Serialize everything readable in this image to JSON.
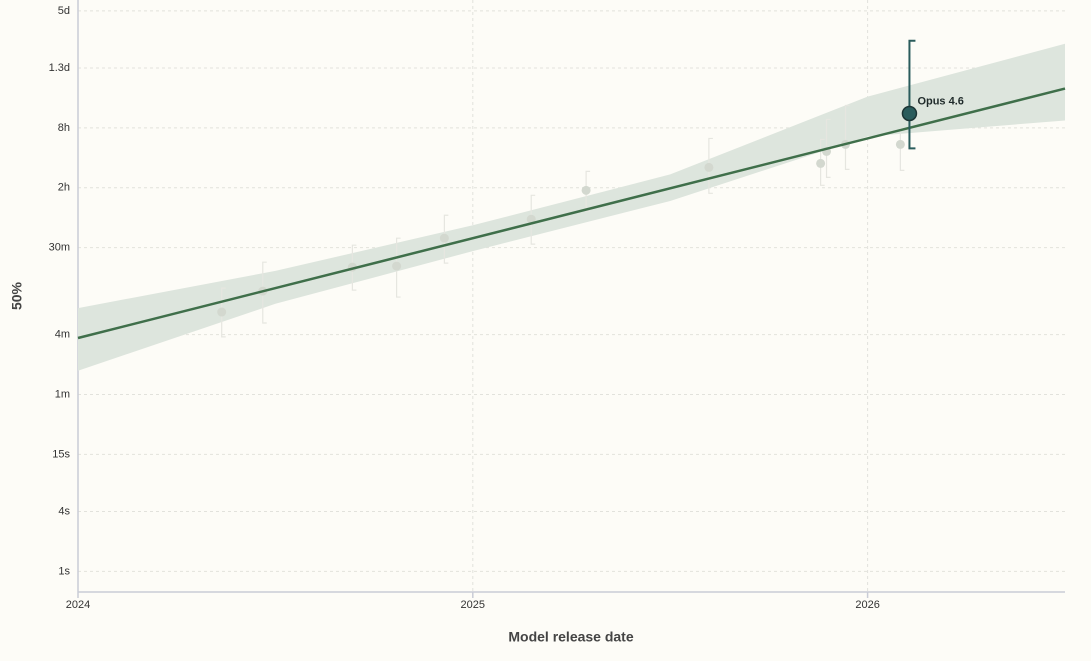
{
  "chart_data": {
    "type": "scatter",
    "y_label": "50%",
    "x_label": "Model release date",
    "xlim": [
      2024,
      2026.5
    ],
    "xticks": [
      2024,
      2025,
      2026
    ],
    "ylim": [
      0.62,
      556000
    ],
    "log_y": true,
    "grid": true,
    "yticks": [
      {
        "value": 1,
        "label": "1s"
      },
      {
        "value": 4,
        "label": "4s"
      },
      {
        "value": 15,
        "label": "15s"
      },
      {
        "value": 60,
        "label": "1m"
      },
      {
        "value": 240,
        "label": "4m"
      },
      {
        "value": 1800,
        "label": "30m"
      },
      {
        "value": 7200,
        "label": "2h"
      },
      {
        "value": 28800,
        "label": "8h"
      },
      {
        "value": 115200,
        "label": "1.3d"
      },
      {
        "value": 432000,
        "label": "5d"
      }
    ],
    "points": {
      "color": "#d3d8cf",
      "x": [
        2024.364,
        2024.468,
        2024.695,
        2024.807,
        2024.928,
        2025.148,
        2025.287,
        2025.598,
        2025.881,
        2025.896,
        2025.944,
        2026.083
      ],
      "values": [
        405,
        658,
        1146,
        1173,
        2239,
        3475,
        6780,
        11530,
        12650,
        16700,
        19630,
        19630
      ],
      "lower": [
        228,
        314,
        673,
        573,
        1256,
        1950,
        4180,
        6330,
        7620,
        9160,
        11010,
        10760
      ],
      "upper": [
        705,
        1285,
        1905,
        2239,
        3810,
        6040,
        10520,
        22550,
        22030,
        34990,
        48300,
        28400
      ]
    },
    "highlight": {
      "label": "Opus 4.6",
      "color": "#2a5c5c",
      "x": 2026.106,
      "value": 40180,
      "lower": 17900,
      "upper": 216700
    },
    "trend": {
      "color": "#3f6f4a",
      "x": [
        2024,
        2026.5
      ],
      "values": [
        222,
        71600
      ]
    },
    "band": {
      "color": "#dde5dd",
      "x": [
        2024,
        2024.5,
        2025,
        2025.5,
        2026,
        2026.5
      ],
      "lower": [
        104,
        490,
        1660,
        5300,
        23600,
        34200
      ],
      "upper": [
        444,
        1050,
        3020,
        9800,
        59400,
        202000
      ]
    }
  }
}
